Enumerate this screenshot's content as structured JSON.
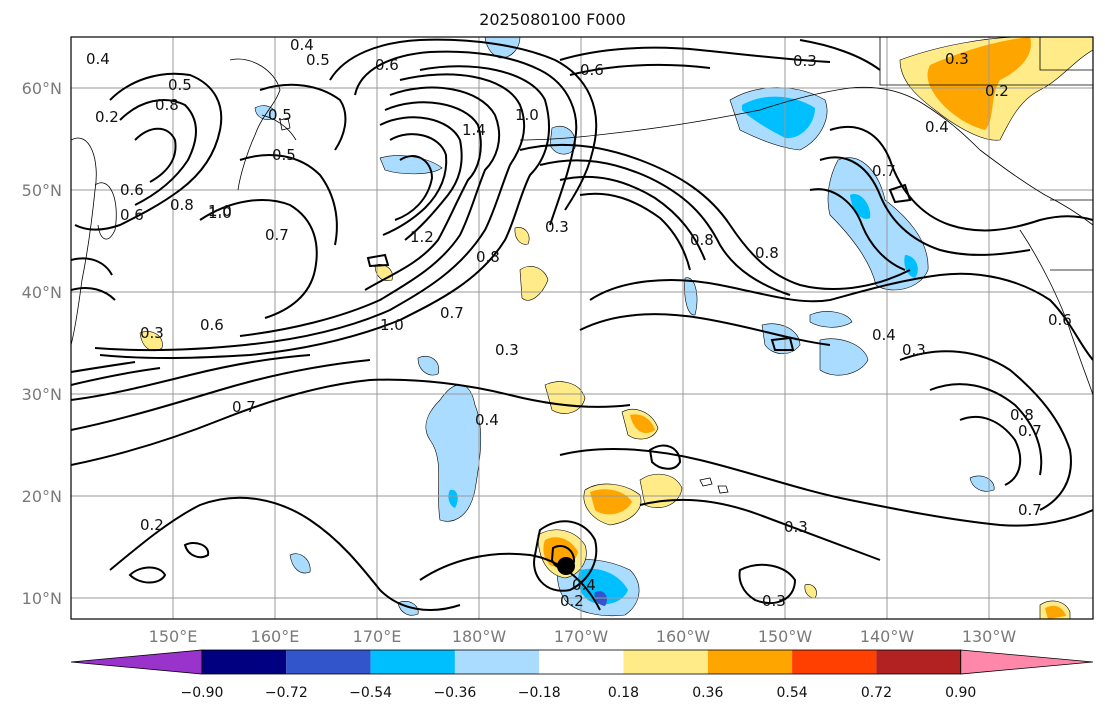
{
  "title": "2025080100 F000",
  "map": {
    "lat_ticks": [
      "60°N",
      "50°N",
      "40°N",
      "30°N",
      "20°N",
      "10°N"
    ],
    "lon_ticks": [
      "150°E",
      "160°E",
      "170°E",
      "180°W",
      "170°W",
      "160°W",
      "150°W",
      "140°W",
      "130°W"
    ],
    "contour_labels": [
      "0.4",
      "0.5",
      "0.6",
      "0.7",
      "0.3",
      "0.5",
      "0.4",
      "0.6",
      "0.8",
      "1.0",
      "0.2",
      "1.4",
      "1.0",
      "0.5",
      "0.8",
      "0.6",
      "1.0",
      "0.7",
      "1.2",
      "0.8",
      "0.7",
      "0.3",
      "0.8",
      "0.8",
      "0.7",
      "0.6",
      "0.3",
      "0.4",
      "0.3",
      "0.5",
      "0.6",
      "1.0",
      "0.2",
      "0.4",
      "0.3",
      "0.3",
      "0.8",
      "0.7",
      "0.7",
      "0.2",
      "0.6",
      "0.4",
      "0.3",
      "0.3",
      "0.2",
      "0.4"
    ]
  },
  "colorbar": {
    "ticks": [
      "−0.90",
      "−0.72",
      "−0.54",
      "−0.36",
      "−0.18",
      "0.18",
      "0.36",
      "0.54",
      "0.72",
      "0.90"
    ],
    "colors": [
      "#9933cc",
      "#000080",
      "#3355cc",
      "#00bfff",
      "#aadcff",
      "#ffffff",
      "#ffeb88",
      "#ffa500",
      "#ff4000",
      "#b22222",
      "#ff88aa"
    ]
  }
}
